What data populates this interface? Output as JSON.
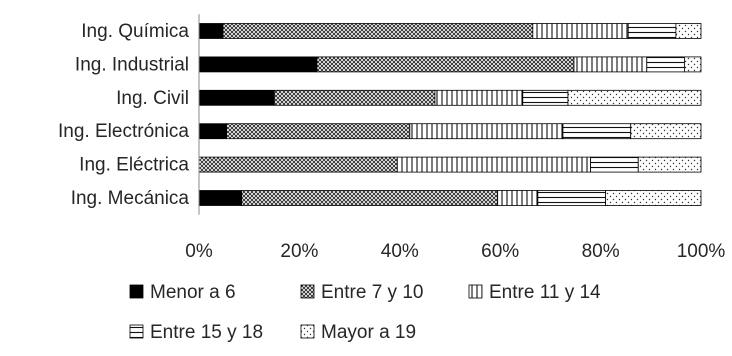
{
  "chart_data": {
    "type": "bar",
    "orientation": "horizontal",
    "stacked": "percent",
    "categories": [
      "Ing. Química",
      "Ing. Industrial",
      "Ing. Civil",
      "Ing. Electrónica",
      "Ing. Eléctrica",
      "Ing. Mecánica"
    ],
    "series": [
      {
        "name": "Menor a 6",
        "pattern": "solid",
        "values": [
          4.8,
          23.5,
          15.0,
          5.5,
          0.0,
          8.5
        ]
      },
      {
        "name": "Entre 7 y 10",
        "pattern": "crosshatch",
        "values": [
          61.7,
          51.2,
          32.0,
          36.5,
          39.5,
          51.0
        ]
      },
      {
        "name": "Entre 11 y 14",
        "pattern": "vertical",
        "values": [
          19.0,
          14.5,
          17.5,
          30.5,
          38.5,
          8.0
        ]
      },
      {
        "name": "Entre 15 y 18",
        "pattern": "horizontal",
        "values": [
          9.5,
          7.5,
          9.0,
          13.5,
          9.5,
          13.5
        ]
      },
      {
        "name": "Mayor a 19",
        "pattern": "dotted",
        "values": [
          5.0,
          3.3,
          26.5,
          14.0,
          12.5,
          19.0
        ]
      }
    ],
    "xlim": [
      0,
      100
    ],
    "x_ticks": [
      "0%",
      "20%",
      "40%",
      "60%",
      "80%",
      "100%"
    ],
    "legend_position": "bottom",
    "grid": false
  }
}
